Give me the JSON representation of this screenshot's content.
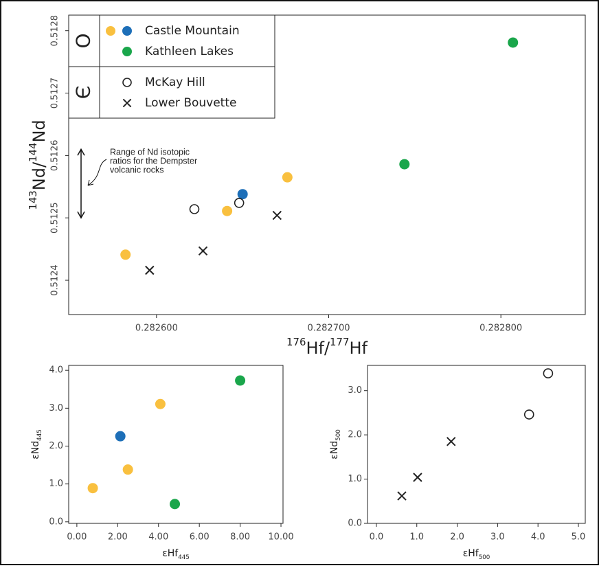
{
  "chart_data": [
    {
      "type": "scatter",
      "xlabel": [
        {
          "text": "176",
          "script": "sup"
        },
        {
          "text": "Hf/"
        },
        {
          "text": "177",
          "script": "sup"
        },
        {
          "text": "Hf"
        }
      ],
      "ylabel": [
        {
          "text": "143",
          "script": "sup"
        },
        {
          "text": "Nd/"
        },
        {
          "text": "144",
          "script": "sup"
        },
        {
          "text": "Nd"
        }
      ],
      "xlim": [
        0.282549,
        0.282849
      ],
      "ylim": [
        0.512345,
        0.512825
      ],
      "xticks": [
        {
          "value": 0.2826,
          "label": "0.282600"
        },
        {
          "value": 0.2827,
          "label": "0.282700"
        },
        {
          "value": 0.2828,
          "label": "0.282800"
        }
      ],
      "yticks": [
        0.5124,
        0.5125,
        0.5126,
        0.5127,
        0.5128
      ],
      "series": [
        {
          "name": "Castle Mountain",
          "period": "O",
          "marker": "circle",
          "colors": [
            "#f9c03f",
            "#f9c03f",
            "#f9c03f",
            "#1d6fb8"
          ],
          "x": [
            0.282582,
            0.282641,
            0.282676,
            0.28265
          ],
          "values": [
            0.512441,
            0.512511,
            0.512565,
            0.512538
          ]
        },
        {
          "name": "Kathleen Lakes",
          "period": "O",
          "marker": "circle",
          "colors": [
            "#1aa64b",
            "#1aa64b"
          ],
          "x": [
            0.282807,
            0.282744
          ],
          "values": [
            0.512781,
            0.512586
          ]
        },
        {
          "name": "McKay Hill",
          "period": "Є",
          "marker": "open-circle",
          "colors": [
            "#222222",
            "#222222"
          ],
          "x": [
            0.282622,
            0.282648
          ],
          "values": [
            0.512514,
            0.512524
          ]
        },
        {
          "name": "Lower Bouvette",
          "period": "Є",
          "marker": "x",
          "colors": [
            "#222222",
            "#222222",
            "#222222"
          ],
          "x": [
            0.282596,
            0.282627,
            0.28267
          ],
          "values": [
            0.512416,
            0.512447,
            0.512504
          ]
        }
      ],
      "annotation": {
        "lines": [
          "Range of Nd isotopic",
          "ratios for the Dempster",
          "volcanic rocks"
        ],
        "range": [
          0.5125,
          0.51261
        ]
      }
    },
    {
      "type": "scatter",
      "xlabel": [
        {
          "text": "εHf"
        },
        {
          "text": "445",
          "script": "sub"
        }
      ],
      "ylabel": [
        {
          "text": "εNd"
        },
        {
          "text": "445",
          "script": "sub"
        }
      ],
      "xlim": [
        -0.4,
        10.1
      ],
      "ylim": [
        -0.04,
        4.13
      ],
      "xticks": [
        {
          "value": 0,
          "label": "0.00"
        },
        {
          "value": 2,
          "label": "2.00"
        },
        {
          "value": 4,
          "label": "4.00"
        },
        {
          "value": 6,
          "label": "6.00"
        },
        {
          "value": 8,
          "label": "8.00"
        },
        {
          "value": 10,
          "label": "10.00"
        }
      ],
      "yticks": [
        {
          "value": 0,
          "label": "0.0"
        },
        {
          "value": 1,
          "label": "1.0"
        },
        {
          "value": 2,
          "label": "2.0"
        },
        {
          "value": 3,
          "label": "3.0"
        },
        {
          "value": 4,
          "label": "4.0"
        }
      ],
      "series": [
        {
          "marker": "circle",
          "colors": [
            "#f9c03f",
            "#f9c03f",
            "#f9c03f",
            "#1d6fb8"
          ],
          "x": [
            0.78,
            2.5,
            4.09,
            2.13
          ],
          "values": [
            0.89,
            1.38,
            3.11,
            2.26
          ]
        },
        {
          "marker": "circle",
          "colors": [
            "#1aa64b",
            "#1aa64b"
          ],
          "x": [
            8.0,
            4.8
          ],
          "values": [
            3.73,
            0.47
          ]
        }
      ]
    },
    {
      "type": "scatter",
      "xlabel": [
        {
          "text": "εHf"
        },
        {
          "text": "500",
          "script": "sub"
        }
      ],
      "ylabel": [
        {
          "text": "εNd"
        },
        {
          "text": "500",
          "script": "sub"
        }
      ],
      "xlim": [
        -0.22,
        5.17
      ],
      "ylim": [
        0,
        3.57
      ],
      "xticks": [
        {
          "value": 0,
          "label": "0.0"
        },
        {
          "value": 1,
          "label": "1.0"
        },
        {
          "value": 2,
          "label": "2.0"
        },
        {
          "value": 3,
          "label": "3.0"
        },
        {
          "value": 4,
          "label": "4.0"
        },
        {
          "value": 5,
          "label": "5.0"
        }
      ],
      "yticks": [
        {
          "value": 0,
          "label": "0.0"
        },
        {
          "value": 1,
          "label": "1.0"
        },
        {
          "value": 2,
          "label": "2.0"
        },
        {
          "value": 3,
          "label": "3.0"
        }
      ],
      "series": [
        {
          "marker": "x",
          "colors": [
            "#222222",
            "#222222",
            "#222222"
          ],
          "x": [
            0.63,
            1.02,
            1.85
          ],
          "values": [
            0.62,
            1.04,
            1.85
          ]
        },
        {
          "marker": "open-circle",
          "colors": [
            "#222222",
            "#222222"
          ],
          "x": [
            3.78,
            4.25
          ],
          "values": [
            2.46,
            3.39
          ]
        }
      ]
    }
  ]
}
